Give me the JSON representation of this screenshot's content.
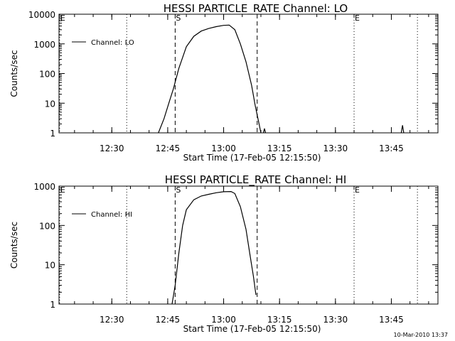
{
  "chart_data": [
    {
      "type": "line",
      "title": "HESSI PARTICLE_RATE Channel: LO",
      "xlabel": "Start Time (17-Feb-05 12:15:50)",
      "ylabel": "Counts/sec",
      "y_scale": "log",
      "ylim": [
        1,
        10000
      ],
      "xlim": [
        "12:15:50",
        "13:57:30"
      ],
      "x_ticks": [
        "12:30",
        "12:45",
        "13:00",
        "13:15",
        "13:30",
        "13:45"
      ],
      "y_ticks": [
        "1",
        "10",
        "100",
        "1000",
        "10000"
      ],
      "legend": {
        "label": "Channel: LO",
        "position": "top-left"
      },
      "markers": [
        {
          "label": "E",
          "time": "12:16",
          "style": "dotted"
        },
        {
          "label": "",
          "time": "12:34",
          "style": "dotted"
        },
        {
          "label": "S",
          "time": "12:47",
          "style": "dashed"
        },
        {
          "label": "",
          "time": "13:09",
          "style": "dashed"
        },
        {
          "label": "E",
          "time": "13:35",
          "style": "dotted"
        },
        {
          "label": "",
          "time": "13:52",
          "style": "dotted"
        }
      ],
      "series": [
        {
          "name": "Channel: LO",
          "x": [
            "12:42:30",
            "12:44:00",
            "12:45:30",
            "12:46:30",
            "12:48:00",
            "12:50:00",
            "12:52:00",
            "12:54:00",
            "12:56:00",
            "12:58:00",
            "13:00:00",
            "13:01:30",
            "13:03:00",
            "13:04:30",
            "13:06:00",
            "13:07:30",
            "13:08:30",
            "13:09:30",
            "13:10:00"
          ],
          "y": [
            1,
            3,
            12,
            30,
            150,
            800,
            1800,
            2700,
            3300,
            3800,
            4200,
            4300,
            3000,
            1000,
            250,
            40,
            8,
            2,
            1
          ]
        },
        {
          "name": "",
          "x": [
            "13:10:40",
            "13:10:58",
            "13:11:15"
          ],
          "y": [
            1,
            1.4,
            1
          ]
        },
        {
          "name": "",
          "x": [
            "13:47:40",
            "13:48:00",
            "13:48:20"
          ],
          "y": [
            1,
            1.8,
            1
          ]
        }
      ]
    },
    {
      "type": "line",
      "title": "HESSI PARTICLE_RATE Channel: HI",
      "xlabel": "Start Time (17-Feb-05 12:15:50)",
      "ylabel": "Counts/sec",
      "y_scale": "log",
      "ylim": [
        1,
        1000
      ],
      "xlim": [
        "12:15:50",
        "13:57:30"
      ],
      "x_ticks": [
        "12:30",
        "12:45",
        "13:00",
        "13:15",
        "13:30",
        "13:45"
      ],
      "y_ticks": [
        "1",
        "10",
        "100",
        "1000"
      ],
      "legend": {
        "label": "Channel: HI",
        "position": "top-left"
      },
      "markers": [
        {
          "label": "E",
          "time": "12:16",
          "style": "dotted"
        },
        {
          "label": "",
          "time": "12:34",
          "style": "dotted"
        },
        {
          "label": "S",
          "time": "12:47",
          "style": "dashed"
        },
        {
          "label": "",
          "time": "13:09",
          "style": "dashed"
        },
        {
          "label": "E",
          "time": "13:35",
          "style": "dotted"
        },
        {
          "label": "",
          "time": "13:52",
          "style": "dotted"
        }
      ],
      "series": [
        {
          "name": "Channel: HI",
          "x": [
            "12:46:10",
            "12:47:00",
            "12:48:00",
            "12:49:00",
            "12:50:00",
            "12:52:00",
            "12:54:00",
            "12:56:00",
            "12:58:00",
            "13:00:00",
            "13:02:00",
            "13:03:00",
            "13:04:30",
            "13:06:00",
            "13:07:00",
            "13:08:00",
            "13:08:40"
          ],
          "y": [
            1,
            3,
            20,
            100,
            250,
            450,
            560,
            620,
            680,
            720,
            730,
            650,
            300,
            80,
            20,
            5,
            1.7
          ]
        }
      ]
    }
  ],
  "footer": {
    "timestamp": "10-Mar-2010 13:37"
  }
}
